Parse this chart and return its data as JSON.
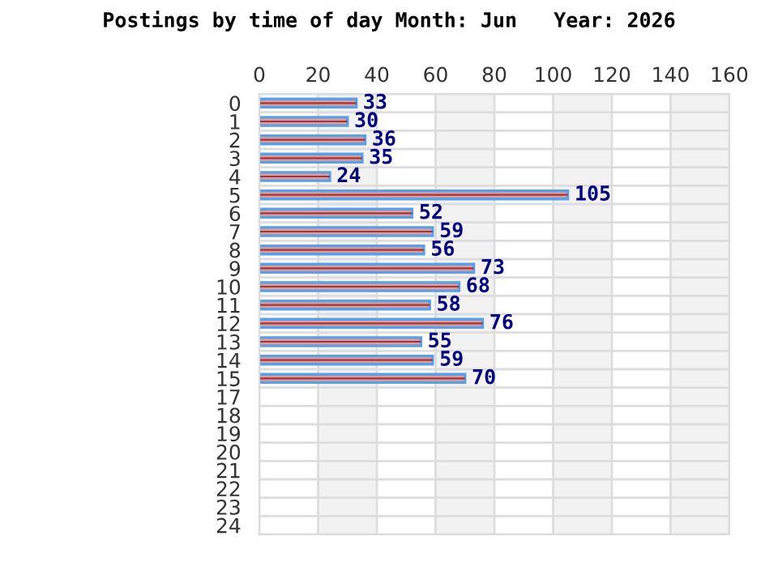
{
  "chart_data": {
    "type": "bar",
    "orientation": "horizontal",
    "title": "Postings by time of day Month: Jun   Year: 2026",
    "categories": [
      "0",
      "1",
      "2",
      "3",
      "4",
      "5",
      "6",
      "7",
      "8",
      "9",
      "10",
      "11",
      "12",
      "13",
      "14",
      "15",
      "17",
      "18",
      "19",
      "20",
      "21",
      "22",
      "23",
      "24"
    ],
    "values": [
      33,
      30,
      36,
      35,
      24,
      105,
      52,
      59,
      56,
      73,
      68,
      58,
      76,
      55,
      59,
      70,
      null,
      null,
      null,
      null,
      null,
      null,
      null,
      null
    ],
    "color": "#d4a0a0",
    "xlim": [
      0,
      160
    ],
    "xticks": [
      0,
      20,
      40,
      60,
      80,
      100,
      120,
      140,
      160
    ],
    "grid": true,
    "data_labels": true
  }
}
